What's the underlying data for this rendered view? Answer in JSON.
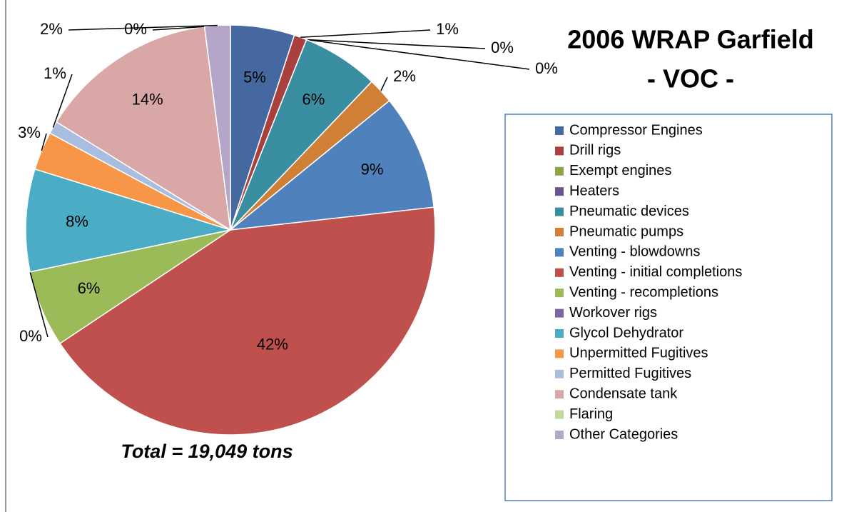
{
  "chart_data": {
    "type": "pie",
    "title": "2006 WRAP Garfield",
    "subtitle": "- VOC -",
    "annotation": "Total = 19,049  tons",
    "categories": [
      "Compressor Engines",
      "Drill rigs",
      "Exempt engines",
      "Heaters",
      "Pneumatic devices",
      "Pneumatic pumps",
      "Venting - blowdowns",
      "Venting - initial completions",
      "Venting - recompletions",
      "Workover rigs",
      "Glycol Dehydrator",
      "Unpermitted Fugitives",
      "Permitted Fugitives",
      "Condensate tank",
      "Flaring",
      "Other Categories"
    ],
    "values": [
      5,
      1,
      0,
      0,
      6,
      2,
      9,
      42,
      6,
      0,
      8,
      3,
      1,
      14,
      0,
      2
    ],
    "value_labels": [
      "5%",
      "1%",
      "0%",
      "0%",
      "6%",
      "2%",
      "9%",
      "42%",
      "6%",
      "0%",
      "8%",
      "3%",
      "1%",
      "14%",
      "0%",
      "2%"
    ],
    "colors": [
      "#44689f",
      "#a9403d",
      "#88a44c",
      "#6a558b",
      "#3a8ea2",
      "#d07f36",
      "#4f81bd",
      "#c0504d",
      "#9bbb59",
      "#8064a2",
      "#4bacc6",
      "#f79646",
      "#a8bde0",
      "#d9a7a6",
      "#c4d79d",
      "#b4a5c9"
    ],
    "legend": "right"
  }
}
